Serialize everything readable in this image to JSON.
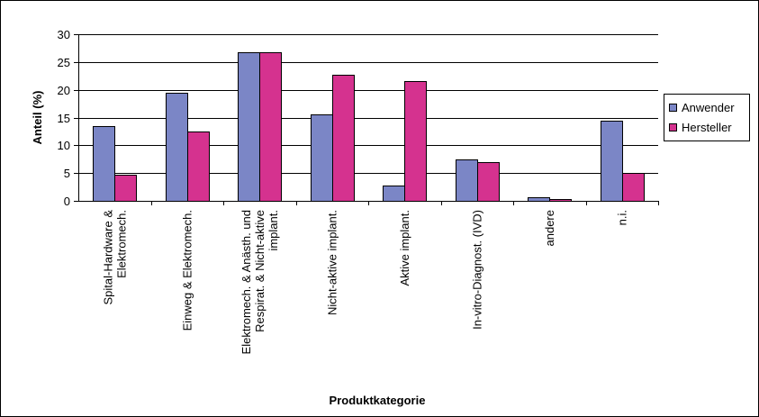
{
  "chart_data": {
    "type": "bar",
    "title": "",
    "xlabel": "Produktkategorie",
    "ylabel": "Anteil (%)",
    "ylim": [
      0,
      30
    ],
    "yticks": [
      0,
      5,
      10,
      15,
      20,
      25,
      30
    ],
    "grid": true,
    "legend_position": "right",
    "categories": [
      [
        "Spital-Hardware &",
        "Elektromech."
      ],
      [
        "Einweg & Elektromech."
      ],
      [
        "Elektromech. & Anästh. und",
        "Respirat. & Nicht-aktive",
        "implant."
      ],
      [
        "Nicht-aktive implant."
      ],
      [
        "Aktive implant."
      ],
      [
        "In-vitro-Diagnost. (IVD)"
      ],
      [
        "andere"
      ],
      [
        "n.i."
      ]
    ],
    "series": [
      {
        "name": "Anwender",
        "color": "#7b86c6",
        "values": [
          13.5,
          19.5,
          26.7,
          15.5,
          2.8,
          7.5,
          0.6,
          14.5
        ]
      },
      {
        "name": "Hersteller",
        "color": "#d5328f",
        "values": [
          4.7,
          12.5,
          26.7,
          22.7,
          21.5,
          6.9,
          0.3,
          5.0
        ]
      }
    ]
  }
}
